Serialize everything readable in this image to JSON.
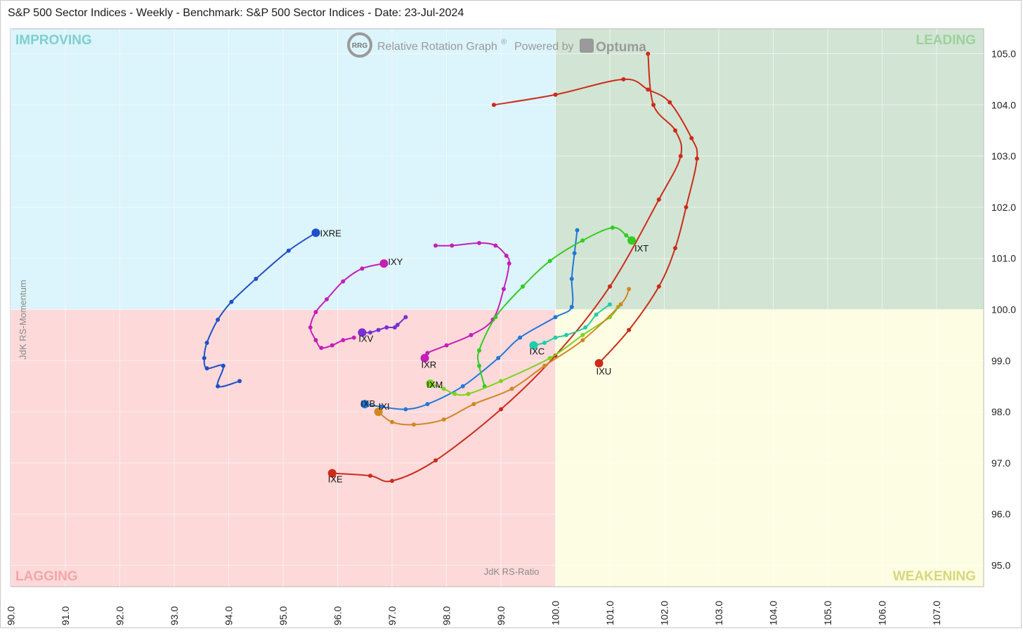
{
  "header": {
    "title": "S&P 500 Sector Indices - Weekly - Benchmark: S&P 500 Sector Indices - Date: 23-Jul-2024"
  },
  "branding": {
    "logo_text": "RRG",
    "product": "Relative Rotation Graph",
    "registered": "®",
    "powered_by": "Powered by",
    "vendor": "Optuma"
  },
  "quadrants": {
    "improving": {
      "label": "IMPROVING",
      "bg": "#dcf4fb",
      "text_color": "#7fcfcf"
    },
    "leading": {
      "label": "LEADING",
      "bg": "#d2e4d3",
      "text_color": "#9bd29b"
    },
    "lagging": {
      "label": "LAGGING",
      "bg": "#fdd9da",
      "text_color": "#f3a6a6"
    },
    "weakening": {
      "label": "WEAKENING",
      "bg": "#fdfde3",
      "text_color": "#d7d77a"
    }
  },
  "chart_data": {
    "type": "scatter",
    "title": "S&P 500 Sector Indices - Weekly - Benchmark: S&P 500 Sector Indices - Date: 23-Jul-2024",
    "xlabel": "JdK RS-Ratio",
    "ylabel": "JdK RS-Momentum",
    "xlim": [
      90.0,
      108.0
    ],
    "ylim": [
      94.6,
      105.5
    ],
    "x_ticks": [
      "90.0",
      "91.0",
      "92.0",
      "93.0",
      "94.0",
      "95.0",
      "96.0",
      "97.0",
      "98.0",
      "99.0",
      "100.0",
      "101.0",
      "102.0",
      "103.0",
      "104.0",
      "105.0",
      "106.0",
      "107.0"
    ],
    "y_ticks": [
      "95.0",
      "96.0",
      "97.0",
      "98.0",
      "99.0",
      "100.0",
      "101.0",
      "102.0",
      "103.0",
      "104.0",
      "105.0"
    ],
    "grid": true,
    "center": {
      "x": 100.0,
      "y": 100.0
    },
    "series": [
      {
        "name": "IXU",
        "color": "#cc2b1a",
        "x": [
          98.87,
          100.0,
          101.25,
          101.7,
          102.1,
          102.5,
          102.6,
          102.4,
          102.2,
          101.9,
          101.35,
          100.8
        ],
        "y": [
          104.0,
          104.2,
          104.5,
          104.3,
          104.05,
          103.35,
          102.95,
          102.0,
          101.2,
          100.45,
          99.6,
          98.95
        ]
      },
      {
        "name": "IXE",
        "color": "#cc2b1a",
        "x": [
          101.7,
          101.8,
          102.2,
          102.3,
          101.9,
          101.0,
          100.0,
          99.0,
          97.8,
          97.0,
          96.6,
          95.9
        ],
        "y": [
          105.0,
          104.0,
          103.5,
          103.0,
          102.15,
          100.45,
          99.1,
          98.05,
          97.05,
          96.65,
          96.75,
          96.8
        ]
      },
      {
        "name": "IXRE",
        "color": "#1f50c8",
        "x": [
          94.2,
          93.8,
          93.9,
          93.6,
          93.55,
          93.6,
          93.8,
          94.05,
          94.5,
          95.1,
          95.6
        ],
        "y": [
          98.6,
          98.5,
          98.9,
          98.85,
          99.05,
          99.35,
          99.8,
          100.15,
          100.6,
          101.15,
          101.5
        ]
      },
      {
        "name": "IXY",
        "color": "#c41fb7",
        "x": [
          96.3,
          96.1,
          95.9,
          95.7,
          95.6,
          95.5,
          95.6,
          95.8,
          96.1,
          96.45,
          96.85
        ],
        "y": [
          99.45,
          99.4,
          99.3,
          99.25,
          99.4,
          99.65,
          99.95,
          100.2,
          100.55,
          100.8,
          100.9
        ]
      },
      {
        "name": "IXR",
        "color": "#c41fb7",
        "x": [
          97.8,
          98.1,
          98.6,
          98.9,
          99.1,
          99.15,
          99.05,
          98.85,
          98.45,
          98.0,
          97.65,
          97.6
        ],
        "y": [
          101.25,
          101.25,
          101.3,
          101.25,
          101.05,
          100.9,
          100.4,
          99.8,
          99.5,
          99.3,
          99.15,
          99.05
        ]
      },
      {
        "name": "IXV",
        "color": "#7a2fd0",
        "x": [
          97.25,
          97.1,
          97.05,
          96.9,
          96.75,
          96.6,
          96.45
        ],
        "y": [
          99.85,
          99.7,
          99.65,
          99.65,
          99.6,
          99.55,
          99.55
        ]
      },
      {
        "name": "IXB",
        "color": "#1f78d8",
        "x": [
          100.4,
          100.35,
          100.3,
          100.3,
          100.0,
          99.35,
          98.95,
          98.3,
          97.65,
          97.25,
          96.8,
          96.5
        ],
        "y": [
          101.55,
          101.1,
          100.6,
          100.05,
          99.85,
          99.45,
          99.05,
          98.5,
          98.15,
          98.05,
          98.1,
          98.15
        ]
      },
      {
        "name": "IXT",
        "color": "#33cc22",
        "x": [
          98.7,
          98.6,
          98.6,
          98.9,
          99.4,
          99.9,
          100.5,
          101.05,
          101.3,
          101.4
        ],
        "y": [
          98.5,
          98.9,
          99.2,
          99.85,
          100.45,
          100.95,
          101.35,
          101.6,
          101.45,
          101.35
        ]
      },
      {
        "name": "IXM",
        "color": "#7dd321",
        "x": [
          101.15,
          101.0,
          100.5,
          99.9,
          99.0,
          98.4,
          98.15,
          97.95,
          97.7
        ],
        "y": [
          100.05,
          99.85,
          99.5,
          99.05,
          98.6,
          98.35,
          98.35,
          98.45,
          98.55
        ]
      },
      {
        "name": "IXI",
        "color": "#d18723",
        "x": [
          101.35,
          101.2,
          100.5,
          99.8,
          99.2,
          98.5,
          97.95,
          97.4,
          97.0,
          96.75
        ],
        "y": [
          100.4,
          100.1,
          99.4,
          98.9,
          98.45,
          98.15,
          97.85,
          97.75,
          97.8,
          98.0
        ]
      },
      {
        "name": "IXC",
        "color": "#22ccaa",
        "x": [
          101.0,
          100.75,
          100.55,
          100.2,
          100.0,
          99.8,
          99.6
        ],
        "y": [
          100.1,
          99.9,
          99.65,
          99.5,
          99.45,
          99.35,
          99.3
        ]
      }
    ]
  }
}
